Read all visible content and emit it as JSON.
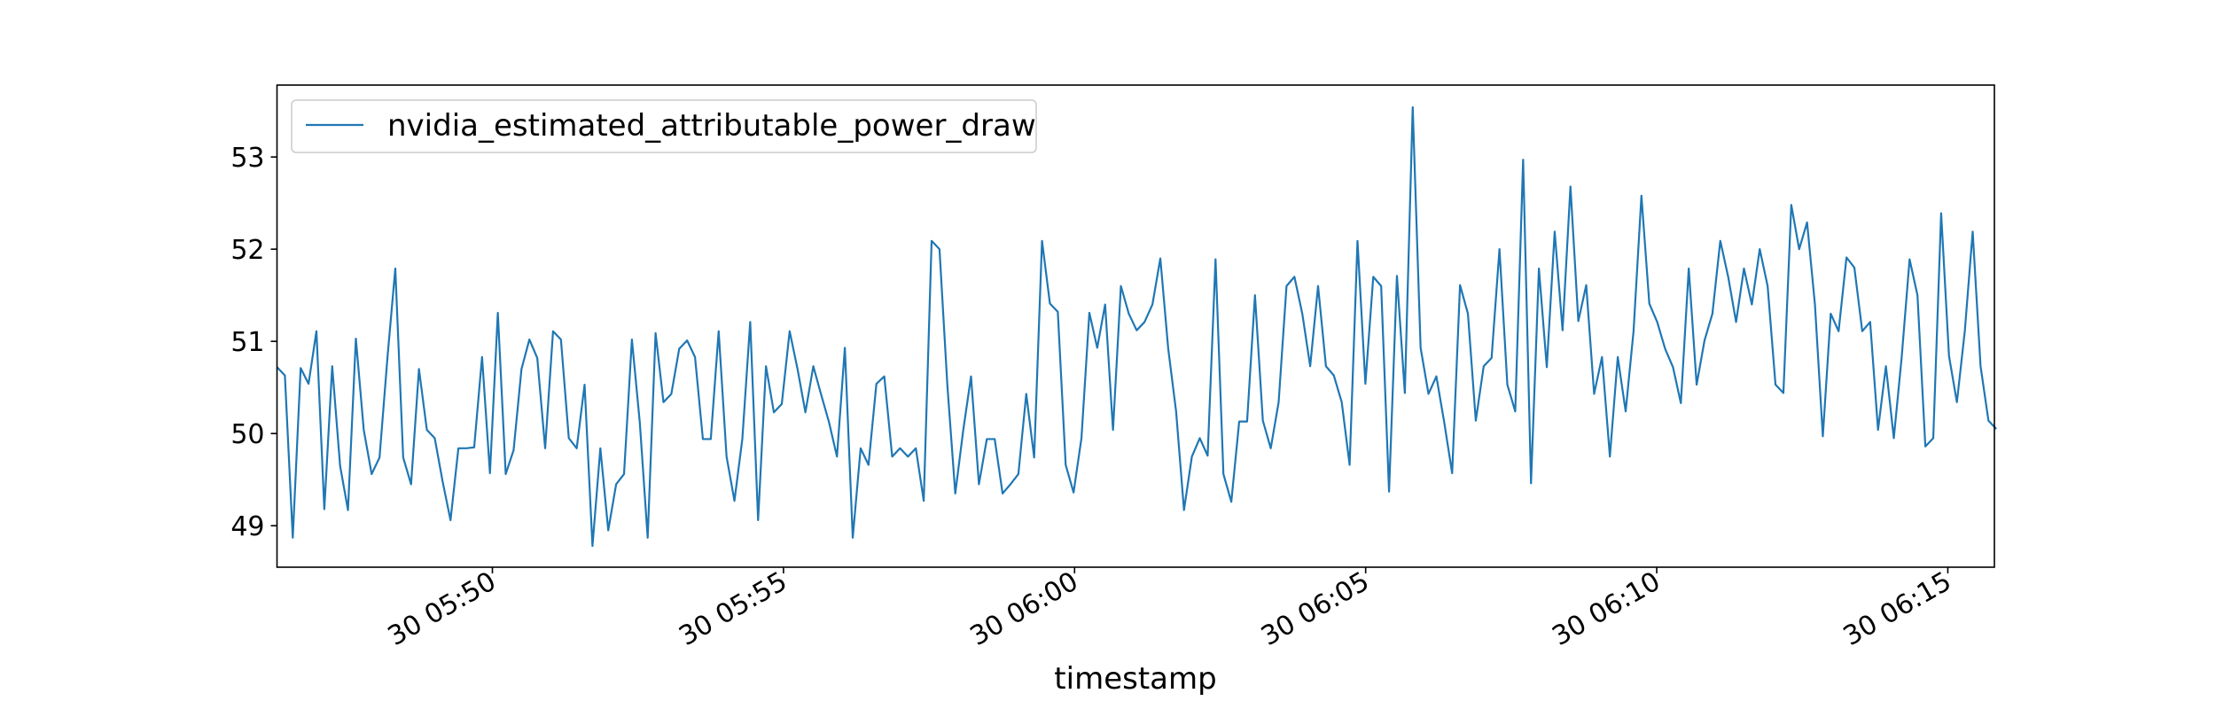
{
  "chart_data": {
    "type": "line",
    "title": "",
    "xlabel": "timestamp",
    "ylabel": "",
    "legend": {
      "placement": "upper-left",
      "entries": [
        "nvidia_estimated_attributable_power_draw"
      ]
    },
    "grid": false,
    "x_range": [
      "05:46:18",
      "06:15:50"
    ],
    "xlim_minutes_from_05_50": [
      -3.7,
      25.8
    ],
    "ylim": [
      48.55,
      53.78
    ],
    "x_ticks": [
      {
        "label": "30 05:50",
        "time": "05:50:00"
      },
      {
        "label": "30 05:55",
        "time": "05:55:00"
      },
      {
        "label": "30 06:00",
        "time": "06:00:00"
      },
      {
        "label": "30 06:05",
        "time": "06:05:00"
      },
      {
        "label": "30 06:10",
        "time": "06:10:00"
      },
      {
        "label": "30 06:15",
        "time": "06:15:00"
      }
    ],
    "y_ticks": [
      49,
      50,
      51,
      52,
      53
    ],
    "series": [
      {
        "name": "nvidia_estimated_attributable_power_draw",
        "color": "#1f77b4",
        "values": [
          50.72,
          50.63,
          48.87,
          50.71,
          50.54,
          51.11,
          49.18,
          50.73,
          49.65,
          49.17,
          51.03,
          50.04,
          49.56,
          49.74,
          50.82,
          51.79,
          49.74,
          49.45,
          50.7,
          50.04,
          49.95,
          49.48,
          49.06,
          49.84,
          49.84,
          49.85,
          50.83,
          49.57,
          51.31,
          49.56,
          49.82,
          50.7,
          51.02,
          50.82,
          49.84,
          51.11,
          51.02,
          49.95,
          49.84,
          50.53,
          48.78,
          49.84,
          48.95,
          49.45,
          49.56,
          51.02,
          50.12,
          48.87,
          51.09,
          50.34,
          50.43,
          50.92,
          51.01,
          50.83,
          49.94,
          49.94,
          51.11,
          49.75,
          49.27,
          49.94,
          51.21,
          49.06,
          50.73,
          50.23,
          50.32,
          51.11,
          50.7,
          50.23,
          50.73,
          50.42,
          50.12,
          49.75,
          50.93,
          48.87,
          49.84,
          49.66,
          50.54,
          50.62,
          49.75,
          49.84,
          49.75,
          49.84,
          49.27,
          52.09,
          52.0,
          50.52,
          49.35,
          50.03,
          50.62,
          49.45,
          49.94,
          49.94,
          49.35,
          49.45,
          49.56,
          50.43,
          49.74,
          52.09,
          51.41,
          51.32,
          49.66,
          49.36,
          49.95,
          51.31,
          50.93,
          51.4,
          50.04,
          51.6,
          51.3,
          51.12,
          51.21,
          51.4,
          51.9,
          50.92,
          50.24,
          49.17,
          49.75,
          49.95,
          49.76,
          51.89,
          49.56,
          49.26,
          50.13,
          50.13,
          51.5,
          50.14,
          49.84,
          50.34,
          51.6,
          51.7,
          51.3,
          50.73,
          51.6,
          50.73,
          50.63,
          50.34,
          49.66,
          52.09,
          50.54,
          51.7,
          51.6,
          49.37,
          51.71,
          50.44,
          53.54,
          50.93,
          50.43,
          50.62,
          50.12,
          49.57,
          51.61,
          51.3,
          50.14,
          50.73,
          50.82,
          52.0,
          50.53,
          50.24,
          52.97,
          49.46,
          51.79,
          50.72,
          52.19,
          51.12,
          52.68,
          51.22,
          51.61,
          50.43,
          50.83,
          49.75,
          50.83,
          50.24,
          51.11,
          52.58,
          51.41,
          51.21,
          50.92,
          50.72,
          50.33,
          51.79,
          50.53,
          51.01,
          51.3,
          52.09,
          51.7,
          51.21,
          51.79,
          51.4,
          52.0,
          51.6,
          50.53,
          50.44,
          52.48,
          52.0,
          52.29,
          51.4,
          49.97,
          51.3,
          51.11,
          51.91,
          51.8,
          51.11,
          51.21,
          50.04,
          50.73,
          49.95,
          50.83,
          51.89,
          51.5,
          49.86,
          49.95,
          52.39,
          50.84,
          50.34,
          51.11,
          52.19,
          50.73,
          50.14,
          50.05
        ]
      }
    ]
  }
}
